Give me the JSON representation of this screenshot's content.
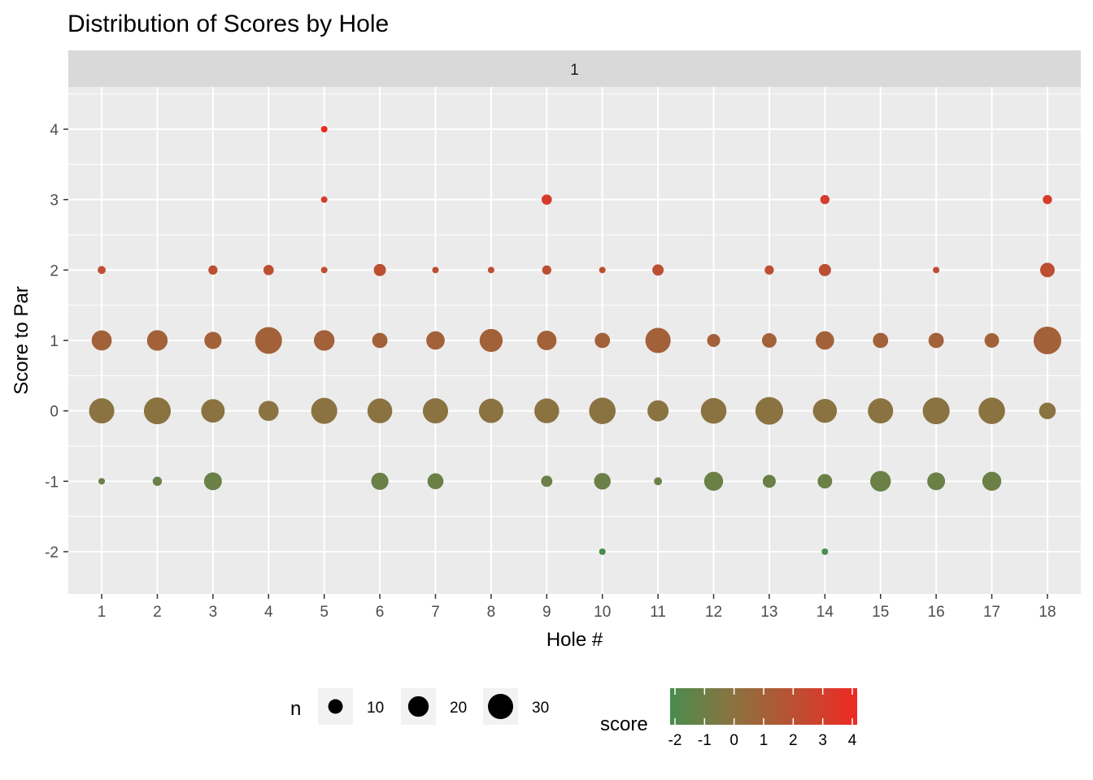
{
  "chart_data": {
    "type": "scatter",
    "title": "Distribution of Scores by Hole",
    "facet_label": "1",
    "xlabel": "Hole #",
    "ylabel": "Score to Par",
    "x_ticks": [
      "1",
      "2",
      "3",
      "4",
      "5",
      "6",
      "7",
      "8",
      "9",
      "10",
      "11",
      "12",
      "13",
      "14",
      "15",
      "16",
      "17",
      "18"
    ],
    "y_ticks": [
      "-2",
      "-1",
      "0",
      "1",
      "2",
      "3",
      "4"
    ],
    "xlim": [
      0.4,
      18.6
    ],
    "ylim": [
      -2.6,
      4.6
    ],
    "grid": true,
    "points": [
      {
        "hole": 1,
        "score": -1,
        "n": 2
      },
      {
        "hole": 1,
        "score": 0,
        "n": 30
      },
      {
        "hole": 1,
        "score": 1,
        "n": 19
      },
      {
        "hole": 1,
        "score": 2,
        "n": 3
      },
      {
        "hole": 2,
        "score": -1,
        "n": 4
      },
      {
        "hole": 2,
        "score": 0,
        "n": 34
      },
      {
        "hole": 2,
        "score": 1,
        "n": 20
      },
      {
        "hole": 3,
        "score": -1,
        "n": 15
      },
      {
        "hole": 3,
        "score": 0,
        "n": 26
      },
      {
        "hole": 3,
        "score": 1,
        "n": 14
      },
      {
        "hole": 3,
        "score": 2,
        "n": 4
      },
      {
        "hole": 4,
        "score": 0,
        "n": 19
      },
      {
        "hole": 4,
        "score": 1,
        "n": 34
      },
      {
        "hole": 4,
        "score": 2,
        "n": 5
      },
      {
        "hole": 5,
        "score": 0,
        "n": 32
      },
      {
        "hole": 5,
        "score": 1,
        "n": 20
      },
      {
        "hole": 5,
        "score": 2,
        "n": 2
      },
      {
        "hole": 5,
        "score": 3,
        "n": 2
      },
      {
        "hole": 5,
        "score": 4,
        "n": 2
      },
      {
        "hole": 6,
        "score": -1,
        "n": 14
      },
      {
        "hole": 6,
        "score": 0,
        "n": 29
      },
      {
        "hole": 6,
        "score": 1,
        "n": 11
      },
      {
        "hole": 6,
        "score": 2,
        "n": 7
      },
      {
        "hole": 7,
        "score": -1,
        "n": 12
      },
      {
        "hole": 7,
        "score": 0,
        "n": 30
      },
      {
        "hole": 7,
        "score": 1,
        "n": 16
      },
      {
        "hole": 7,
        "score": 2,
        "n": 2
      },
      {
        "hole": 8,
        "score": 0,
        "n": 28
      },
      {
        "hole": 8,
        "score": 1,
        "n": 25
      },
      {
        "hole": 8,
        "score": 2,
        "n": 2
      },
      {
        "hole": 9,
        "score": -1,
        "n": 6
      },
      {
        "hole": 9,
        "score": 0,
        "n": 29
      },
      {
        "hole": 9,
        "score": 1,
        "n": 18
      },
      {
        "hole": 9,
        "score": 2,
        "n": 4
      },
      {
        "hole": 9,
        "score": 3,
        "n": 5
      },
      {
        "hole": 10,
        "score": -2,
        "n": 2
      },
      {
        "hole": 10,
        "score": -1,
        "n": 13
      },
      {
        "hole": 10,
        "score": 0,
        "n": 33
      },
      {
        "hole": 10,
        "score": 1,
        "n": 11
      },
      {
        "hole": 10,
        "score": 2,
        "n": 2
      },
      {
        "hole": 11,
        "score": -1,
        "n": 3
      },
      {
        "hole": 11,
        "score": 0,
        "n": 21
      },
      {
        "hole": 11,
        "score": 1,
        "n": 30
      },
      {
        "hole": 11,
        "score": 2,
        "n": 6
      },
      {
        "hole": 12,
        "score": -1,
        "n": 17
      },
      {
        "hole": 12,
        "score": 0,
        "n": 31
      },
      {
        "hole": 12,
        "score": 1,
        "n": 8
      },
      {
        "hole": 13,
        "score": -1,
        "n": 8
      },
      {
        "hole": 13,
        "score": 0,
        "n": 36
      },
      {
        "hole": 13,
        "score": 1,
        "n": 10
      },
      {
        "hole": 13,
        "score": 2,
        "n": 4
      },
      {
        "hole": 14,
        "score": -2,
        "n": 2
      },
      {
        "hole": 14,
        "score": -1,
        "n": 10
      },
      {
        "hole": 14,
        "score": 0,
        "n": 27
      },
      {
        "hole": 14,
        "score": 1,
        "n": 16
      },
      {
        "hole": 14,
        "score": 2,
        "n": 7
      },
      {
        "hole": 14,
        "score": 3,
        "n": 4
      },
      {
        "hole": 15,
        "score": -1,
        "n": 20
      },
      {
        "hole": 15,
        "score": 0,
        "n": 30
      },
      {
        "hole": 15,
        "score": 1,
        "n": 11
      },
      {
        "hole": 16,
        "score": -1,
        "n": 15
      },
      {
        "hole": 16,
        "score": 0,
        "n": 34
      },
      {
        "hole": 16,
        "score": 1,
        "n": 11
      },
      {
        "hole": 16,
        "score": 2,
        "n": 2
      },
      {
        "hole": 17,
        "score": -1,
        "n": 17
      },
      {
        "hole": 17,
        "score": 0,
        "n": 33
      },
      {
        "hole": 17,
        "score": 1,
        "n": 10
      },
      {
        "hole": 18,
        "score": 0,
        "n": 13
      },
      {
        "hole": 18,
        "score": 1,
        "n": 36
      },
      {
        "hole": 18,
        "score": 2,
        "n": 10
      },
      {
        "hole": 18,
        "score": 3,
        "n": 4
      }
    ],
    "legend_size": {
      "title": "n",
      "breaks": [
        10,
        20,
        30
      ],
      "labels": [
        "10",
        "20",
        "30"
      ]
    },
    "legend_color": {
      "title": "score",
      "breaks": [
        "-2",
        "-1",
        "0",
        "1",
        "2",
        "3",
        "4"
      ],
      "low": "#4a8c4e",
      "mid": "#8a7340",
      "high": "#ee2a24",
      "range": [
        -2,
        4
      ]
    },
    "legend_position": "bottom"
  }
}
